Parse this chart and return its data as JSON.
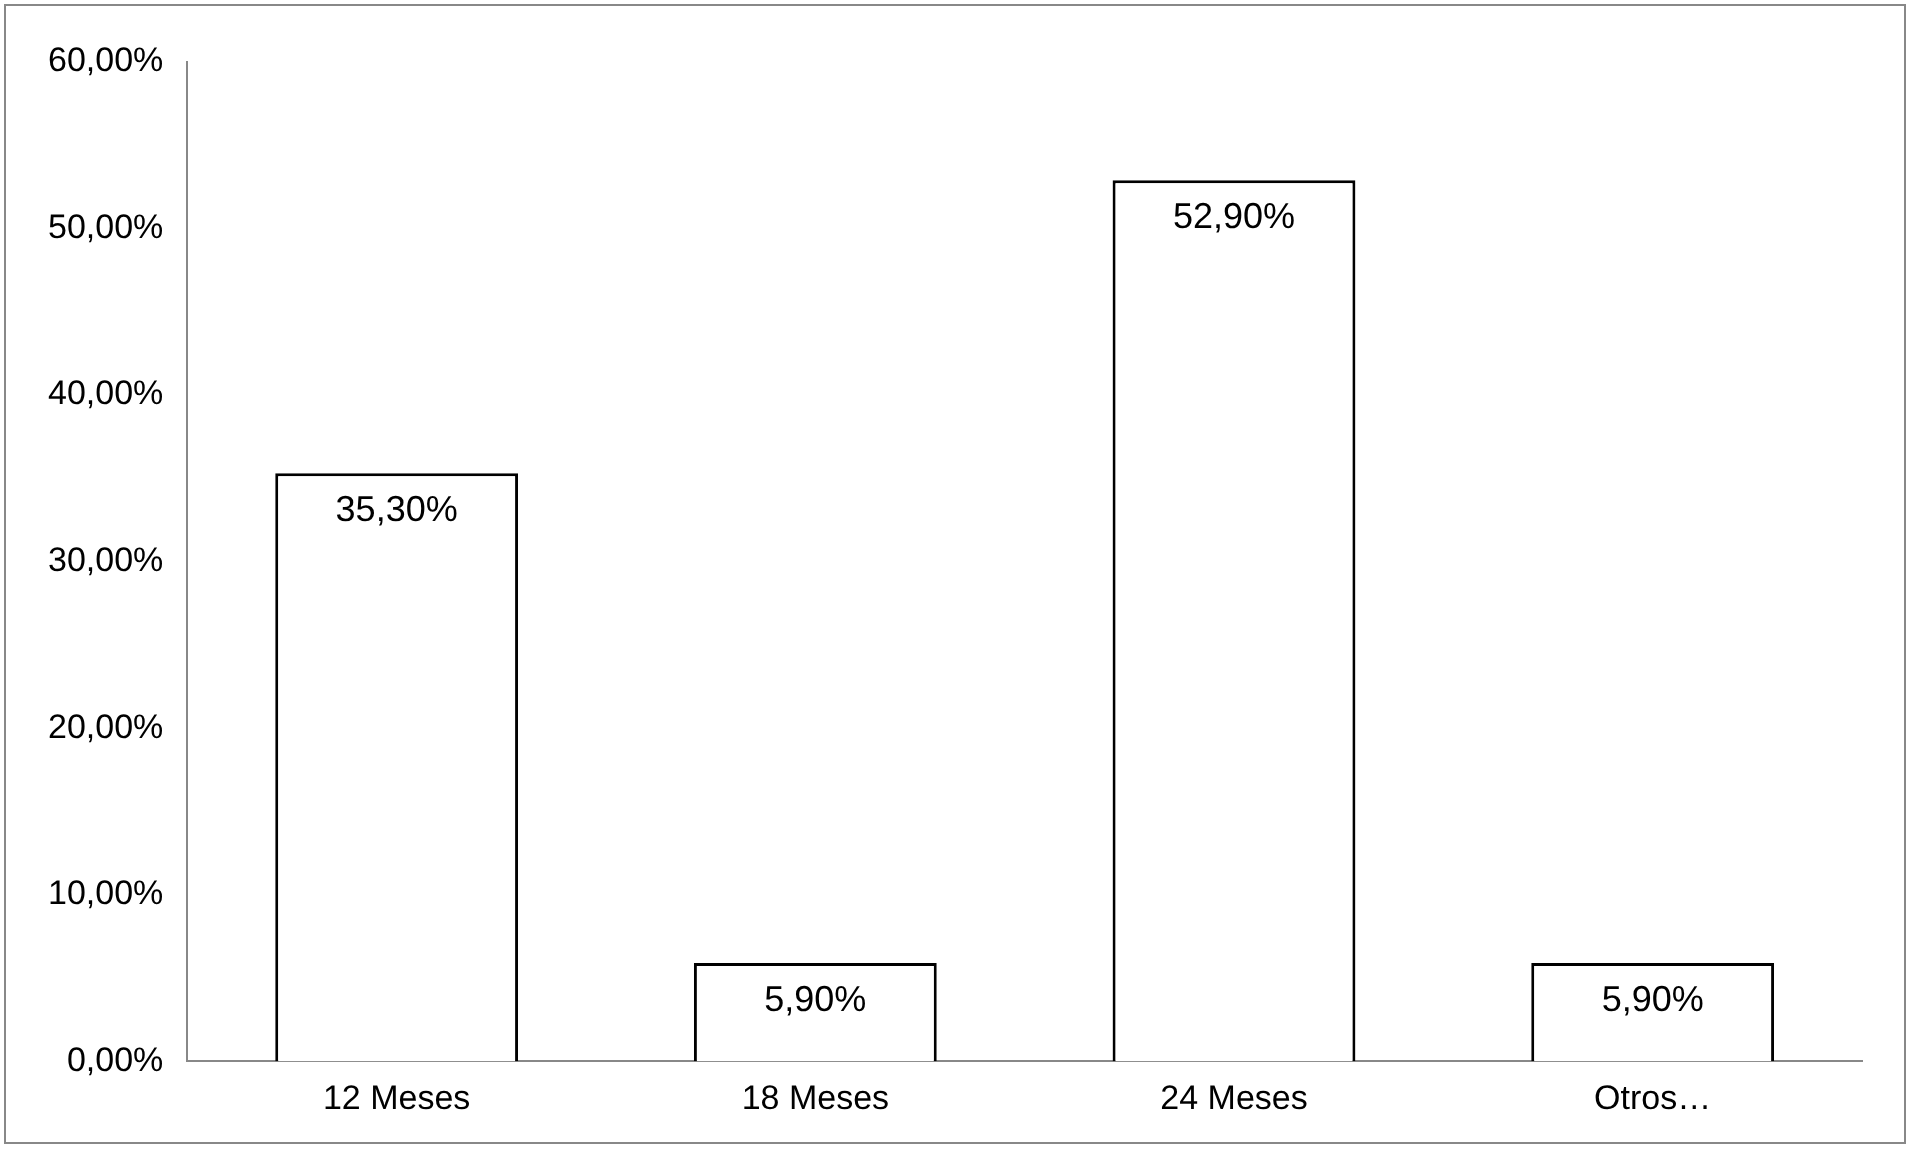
{
  "chart_data": {
    "type": "bar",
    "categories": [
      "12 Meses",
      "18 Meses",
      "24 Meses",
      "Otros…"
    ],
    "values": [
      35.3,
      5.9,
      52.9,
      5.9
    ],
    "value_labels": [
      "35,30%",
      "5,90%",
      "52,90%",
      "5,90%"
    ],
    "color": "#ffffff",
    "ylim": [
      0,
      60
    ],
    "yticks": [
      {
        "value": 0,
        "label": "0,00%"
      },
      {
        "value": 10,
        "label": "10,00%"
      },
      {
        "value": 20,
        "label": "20,00%"
      },
      {
        "value": 30,
        "label": "30,00%"
      },
      {
        "value": 40,
        "label": "40,00%"
      },
      {
        "value": 50,
        "label": "50,00%"
      },
      {
        "value": 60,
        "label": "60,00%"
      }
    ],
    "grid": false,
    "legend": false
  }
}
